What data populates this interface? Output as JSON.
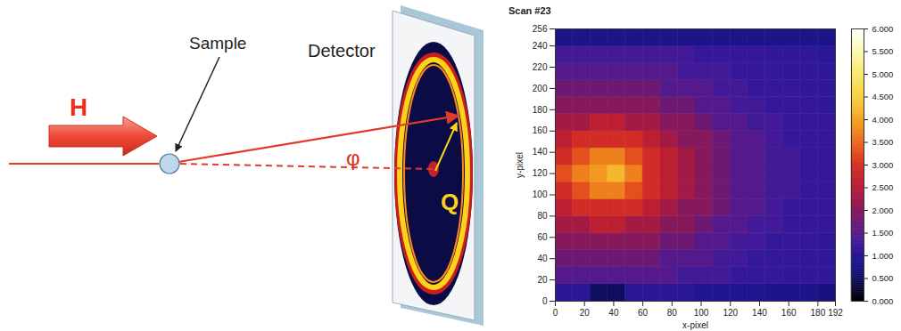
{
  "diagram": {
    "labels": {
      "beam": "H",
      "sample": "Sample",
      "detector": "Detector",
      "angle": "φ",
      "vector": "Q"
    }
  },
  "chart_data": {
    "type": "heatmap",
    "title": "Scan #23",
    "x_label": "x-pixel",
    "y_label": "y-pixel",
    "xlim": [
      0,
      192
    ],
    "ylim": [
      0,
      256
    ],
    "xticks": [
      0,
      20,
      40,
      60,
      80,
      100,
      120,
      140,
      160,
      180,
      192
    ],
    "yticks": [
      0,
      20,
      40,
      60,
      80,
      100,
      120,
      140,
      160,
      180,
      200,
      220,
      240,
      256
    ],
    "x_bins": [
      0,
      12,
      24,
      36,
      48,
      60,
      72,
      84,
      96,
      108,
      120,
      132,
      144,
      156,
      168,
      180,
      192
    ],
    "y_bins": [
      0,
      16,
      32,
      48,
      64,
      80,
      96,
      112,
      128,
      144,
      160,
      176,
      192,
      208,
      224,
      240,
      256
    ],
    "values": [
      [
        1.0,
        1.0,
        0.5,
        0.5,
        1.0,
        1.0,
        1.0,
        1.0,
        0.85,
        0.85,
        0.85,
        0.85,
        0.8,
        0.8,
        0.8,
        0.7
      ],
      [
        1.5,
        1.5,
        1.5,
        1.5,
        1.5,
        1.5,
        1.5,
        1.3,
        1.3,
        1.3,
        1.15,
        1.15,
        1.15,
        1.1,
        1.1,
        1.1
      ],
      [
        1.75,
        1.75,
        1.75,
        1.75,
        1.75,
        1.75,
        1.5,
        1.5,
        1.5,
        1.3,
        1.3,
        1.15,
        1.15,
        1.15,
        1.1,
        1.1
      ],
      [
        2.0,
        2.0,
        2.0,
        2.0,
        2.0,
        2.0,
        1.75,
        1.75,
        1.5,
        1.5,
        1.3,
        1.3,
        1.15,
        1.15,
        1.15,
        1.1
      ],
      [
        2.3,
        2.3,
        2.6,
        2.6,
        2.3,
        2.3,
        2.0,
        2.0,
        1.75,
        1.5,
        1.5,
        1.3,
        1.3,
        1.15,
        1.15,
        1.15
      ],
      [
        2.6,
        2.9,
        2.9,
        2.9,
        2.9,
        2.6,
        2.3,
        2.0,
        2.0,
        1.75,
        1.5,
        1.5,
        1.3,
        1.15,
        1.15,
        1.15
      ],
      [
        2.9,
        3.3,
        3.7,
        3.7,
        3.3,
        2.9,
        2.6,
        2.3,
        2.0,
        1.75,
        1.5,
        1.5,
        1.3,
        1.3,
        1.15,
        1.15
      ],
      [
        3.3,
        3.7,
        3.9,
        4.2,
        3.7,
        2.9,
        2.6,
        2.3,
        2.0,
        1.75,
        1.5,
        1.5,
        1.3,
        1.3,
        1.15,
        1.15
      ],
      [
        2.9,
        3.3,
        3.7,
        3.7,
        3.3,
        2.9,
        2.6,
        2.3,
        2.0,
        1.75,
        1.5,
        1.5,
        1.3,
        1.3,
        1.15,
        1.15
      ],
      [
        2.6,
        2.9,
        2.9,
        2.9,
        2.9,
        2.6,
        2.3,
        2.0,
        2.0,
        1.75,
        1.5,
        1.5,
        1.3,
        1.15,
        1.15,
        1.15
      ],
      [
        2.3,
        2.3,
        2.6,
        2.6,
        2.3,
        2.3,
        2.0,
        2.0,
        1.75,
        1.5,
        1.5,
        1.3,
        1.3,
        1.15,
        1.15,
        1.15
      ],
      [
        2.0,
        2.0,
        2.0,
        2.0,
        2.0,
        2.0,
        1.75,
        1.75,
        1.5,
        1.5,
        1.3,
        1.3,
        1.15,
        1.15,
        1.15,
        1.1
      ],
      [
        1.75,
        1.75,
        1.75,
        1.75,
        1.75,
        1.75,
        1.5,
        1.5,
        1.5,
        1.3,
        1.3,
        1.15,
        1.15,
        1.15,
        1.1,
        1.1
      ],
      [
        1.5,
        1.5,
        1.5,
        1.5,
        1.5,
        1.5,
        1.5,
        1.3,
        1.3,
        1.3,
        1.15,
        1.15,
        1.15,
        1.1,
        1.1,
        1.1
      ],
      [
        1.3,
        1.3,
        1.3,
        1.3,
        1.3,
        1.3,
        1.3,
        1.3,
        1.15,
        1.15,
        1.15,
        1.15,
        1.1,
        1.1,
        1.1,
        1.0
      ],
      [
        0.8,
        0.8,
        0.8,
        0.8,
        0.8,
        0.8,
        0.8,
        0.8,
        0.8,
        0.8,
        0.8,
        0.8,
        0.8,
        0.8,
        0.8,
        0.8
      ]
    ],
    "colorbar": {
      "range": [
        0,
        6
      ],
      "ticks": [
        {
          "value": 0,
          "label": "0.000"
        },
        {
          "value": 0.5,
          "label": "0.500"
        },
        {
          "value": 1,
          "label": "1.000"
        },
        {
          "value": 1.5,
          "label": "1.500"
        },
        {
          "value": 2,
          "label": "2.000"
        },
        {
          "value": 2.5,
          "label": "2.500"
        },
        {
          "value": 3,
          "label": "3.000"
        },
        {
          "value": 3.5,
          "label": "3.500"
        },
        {
          "value": 4,
          "label": "4.000"
        },
        {
          "value": 4.5,
          "label": "4.500"
        },
        {
          "value": 5,
          "label": "5.000"
        },
        {
          "value": 5.5,
          "label": "5.500"
        },
        {
          "value": 6,
          "label": "6.000"
        }
      ]
    }
  }
}
